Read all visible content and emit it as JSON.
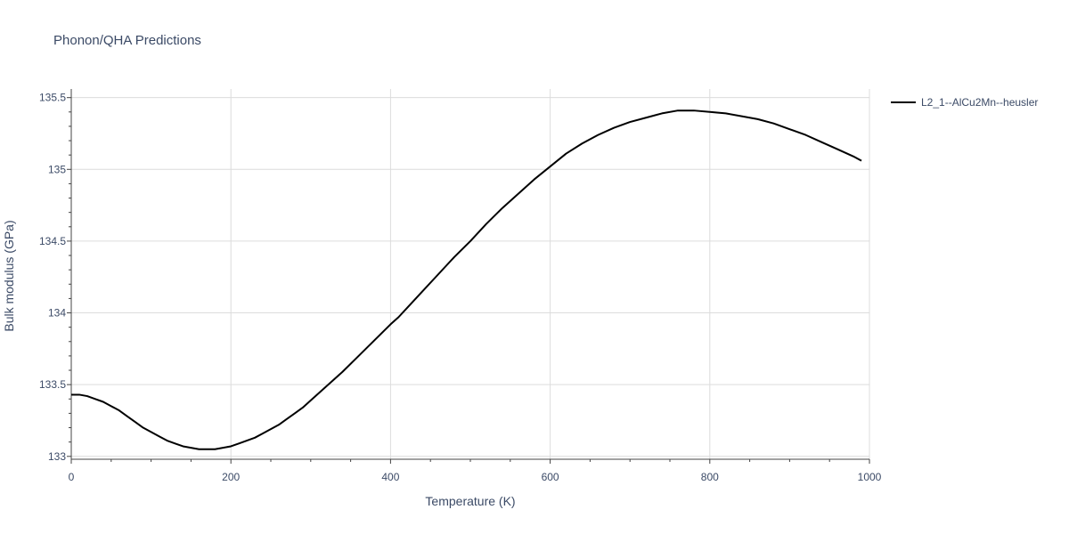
{
  "chart_data": {
    "type": "line",
    "title": "Phonon/QHA Predictions",
    "xlabel": "Temperature (K)",
    "ylabel": "Bulk modulus (GPa)",
    "xlim": [
      0,
      1000
    ],
    "ylim": [
      132.98,
      135.56
    ],
    "x_ticks": [
      0,
      200,
      400,
      600,
      800,
      1000
    ],
    "y_ticks": [
      133,
      133.5,
      134,
      134.5,
      135,
      135.5
    ],
    "x_tick_labels": [
      "0",
      "200",
      "400",
      "600",
      "800",
      "1000"
    ],
    "y_tick_labels": [
      "133",
      "133.5",
      "134",
      "134.5",
      "135",
      "135.5"
    ],
    "grid": true,
    "legend_position": "top-right",
    "series": [
      {
        "name": "L2_1--AlCu2Mn--heusler",
        "color": "#000000",
        "x": [
          0,
          10,
          20,
          30,
          40,
          50,
          60,
          70,
          80,
          90,
          100,
          110,
          120,
          130,
          140,
          150,
          160,
          170,
          180,
          190,
          200,
          210,
          220,
          230,
          240,
          250,
          260,
          270,
          280,
          290,
          300,
          320,
          340,
          360,
          380,
          400,
          410,
          420,
          440,
          460,
          480,
          500,
          520,
          540,
          560,
          580,
          600,
          620,
          640,
          660,
          680,
          700,
          720,
          740,
          760,
          780,
          800,
          820,
          840,
          860,
          880,
          900,
          920,
          940,
          960,
          980,
          990
        ],
        "y": [
          133.43,
          133.43,
          133.42,
          133.4,
          133.38,
          133.35,
          133.32,
          133.28,
          133.24,
          133.2,
          133.17,
          133.14,
          133.11,
          133.09,
          133.07,
          133.06,
          133.05,
          133.05,
          133.05,
          133.06,
          133.07,
          133.09,
          133.11,
          133.13,
          133.16,
          133.19,
          133.22,
          133.26,
          133.3,
          133.34,
          133.39,
          133.49,
          133.59,
          133.7,
          133.81,
          133.92,
          133.97,
          134.03,
          134.15,
          134.27,
          134.39,
          134.5,
          134.62,
          134.73,
          134.83,
          134.93,
          135.02,
          135.11,
          135.18,
          135.24,
          135.29,
          135.33,
          135.36,
          135.39,
          135.41,
          135.41,
          135.4,
          135.39,
          135.37,
          135.35,
          135.32,
          135.28,
          135.24,
          135.19,
          135.14,
          135.09,
          135.06
        ]
      }
    ]
  }
}
